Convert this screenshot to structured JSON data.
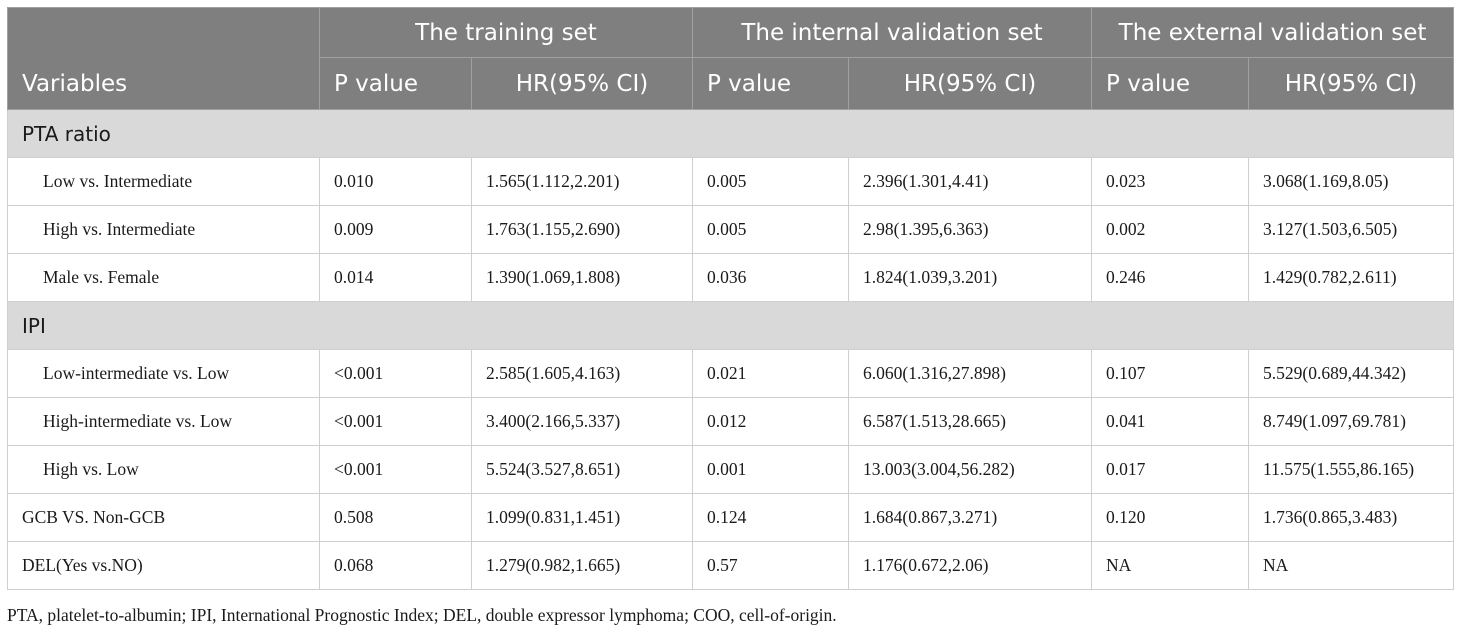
{
  "header": {
    "variables": "Variables",
    "groups": [
      "The training set",
      "The internal validation set",
      "The external validation set"
    ],
    "p_value": "P value",
    "hr_ci": "HR(95% CI)"
  },
  "rows": [
    {
      "type": "section",
      "label": "PTA ratio"
    },
    {
      "type": "data",
      "indent": true,
      "label": "Low vs. Intermediate",
      "values": [
        "0.010",
        "1.565(1.112,2.201)",
        "0.005",
        "2.396(1.301,4.41)",
        "0.023",
        "3.068(1.169,8.05)"
      ]
    },
    {
      "type": "data",
      "indent": true,
      "label": "High vs. Intermediate",
      "values": [
        "0.009",
        "1.763(1.155,2.690)",
        "0.005",
        "2.98(1.395,6.363)",
        "0.002",
        "3.127(1.503,6.505)"
      ]
    },
    {
      "type": "data",
      "indent": true,
      "label": "Male vs. Female",
      "values": [
        "0.014",
        "1.390(1.069,1.808)",
        "0.036",
        "1.824(1.039,3.201)",
        "0.246",
        "1.429(0.782,2.611)"
      ]
    },
    {
      "type": "section",
      "label": "IPI"
    },
    {
      "type": "data",
      "indent": true,
      "label": "Low-intermediate vs. Low",
      "values": [
        "<0.001",
        "2.585(1.605,4.163)",
        "0.021",
        "6.060(1.316,27.898)",
        "0.107",
        "5.529(0.689,44.342)"
      ]
    },
    {
      "type": "data",
      "indent": true,
      "label": "High-intermediate vs. Low",
      "values": [
        "<0.001",
        "3.400(2.166,5.337)",
        "0.012",
        "6.587(1.513,28.665)",
        "0.041",
        "8.749(1.097,69.781)"
      ]
    },
    {
      "type": "data",
      "indent": true,
      "label": "High vs. Low",
      "values": [
        "<0.001",
        "5.524(3.527,8.651)",
        "0.001",
        "13.003(3.004,56.282)",
        "0.017",
        "11.575(1.555,86.165)"
      ]
    },
    {
      "type": "data",
      "indent": false,
      "label": "GCB VS. Non-GCB",
      "values": [
        "0.508",
        "1.099(0.831,1.451)",
        "0.124",
        "1.684(0.867,3.271)",
        "0.120",
        "1.736(0.865,3.483)"
      ]
    },
    {
      "type": "data",
      "indent": false,
      "label": "DEL(Yes vs.NO)",
      "values": [
        "0.068",
        "1.279(0.982,1.665)",
        "0.57",
        "1.176(0.672,2.06)",
        "NA",
        "NA"
      ]
    }
  ],
  "footnote": "PTA, platelet-to-albumin; IPI, International Prognostic Index; DEL, double expressor lymphoma; COO, cell-of-origin."
}
